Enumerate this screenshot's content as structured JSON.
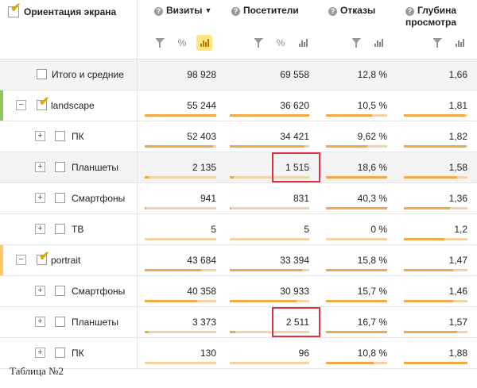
{
  "header": {
    "dimension_label": "Ориентация экрана",
    "columns": [
      {
        "label": "Визиты",
        "sort_indicator": "▼",
        "icon": "question-icon"
      },
      {
        "label": "Посетители",
        "icon": "question-icon"
      },
      {
        "label": "Отказы",
        "icon": "question-icon"
      },
      {
        "label": "Глубина просмотра",
        "icon": "question-icon"
      }
    ],
    "tools": {
      "filter": "filter-icon",
      "percent_label": "%",
      "chart": "bar-chart-icon",
      "active_tool": "chart",
      "active_color": "#ffe680"
    }
  },
  "rows": [
    {
      "type": "total",
      "label": "Итого и средние",
      "visits": "98 928",
      "visitors": "69 558",
      "bounce": "12,8 %",
      "depth": "1,66"
    },
    {
      "type": "group",
      "label": "landscape",
      "expander": "−",
      "checked": true,
      "stripe_color": "#8ec760",
      "visits": "55 244",
      "visitors": "36 620",
      "bounce": "10,5 %",
      "depth": "1,81",
      "shares": {
        "visits": 1.0,
        "visitors": 1.0,
        "bounce": 0.75,
        "depth": 0.96
      }
    },
    {
      "type": "child",
      "label": "ПК",
      "expander": "+",
      "visits": "52 403",
      "visitors": "34 421",
      "bounce": "9,62 %",
      "depth": "1,82",
      "shares": {
        "visits": 0.95,
        "visitors": 0.94,
        "bounce": 0.68,
        "depth": 0.97
      }
    },
    {
      "type": "child",
      "label": "Планшеты",
      "expander": "+",
      "highlighted": true,
      "visits": "2 135",
      "visitors": "1 515",
      "bounce": "18,6 %",
      "depth": "1,58",
      "shares": {
        "visits": 0.05,
        "visitors": 0.05,
        "bounce": 1.0,
        "depth": 0.84
      }
    },
    {
      "type": "child",
      "label": "Смартфоны",
      "expander": "+",
      "visits": "941",
      "visitors": "831",
      "bounce": "40,3 %",
      "depth": "1,36",
      "shares": {
        "visits": 0.02,
        "visitors": 0.02,
        "bounce": 1.0,
        "depth": 0.72
      }
    },
    {
      "type": "child",
      "label": "ТВ",
      "expander": "+",
      "visits": "5",
      "visitors": "5",
      "bounce": "0 %",
      "depth": "1,2",
      "shares": {
        "visits": 0.0,
        "visitors": 0.0,
        "bounce": 0.0,
        "depth": 0.64
      }
    },
    {
      "type": "group",
      "label": "portrait",
      "expander": "−",
      "checked": true,
      "stripe_color": "#ffc86b",
      "visits": "43 684",
      "visitors": "33 394",
      "bounce": "15,8 %",
      "depth": "1,47",
      "shares": {
        "visits": 0.79,
        "visitors": 0.91,
        "bounce": 1.0,
        "depth": 0.78
      }
    },
    {
      "type": "child",
      "label": "Смартфоны",
      "expander": "+",
      "visits": "40 358",
      "visitors": "30 933",
      "bounce": "15,7 %",
      "depth": "1,46",
      "shares": {
        "visits": 0.73,
        "visitors": 0.84,
        "bounce": 1.0,
        "depth": 0.78
      }
    },
    {
      "type": "child",
      "label": "Планшеты",
      "expander": "+",
      "visits": "3 373",
      "visitors": "2 511",
      "bounce": "16,7 %",
      "depth": "1,57",
      "shares": {
        "visits": 0.06,
        "visitors": 0.07,
        "bounce": 1.0,
        "depth": 0.84
      }
    },
    {
      "type": "child",
      "label": "ПК",
      "expander": "+",
      "visits": "130",
      "visitors": "96",
      "bounce": "10,8 %",
      "depth": "1,88",
      "shares": {
        "visits": 0.0,
        "visitors": 0.0,
        "bounce": 0.78,
        "depth": 1.0
      }
    }
  ],
  "highlight_color": "#d9343f",
  "caption": "Таблица №2"
}
